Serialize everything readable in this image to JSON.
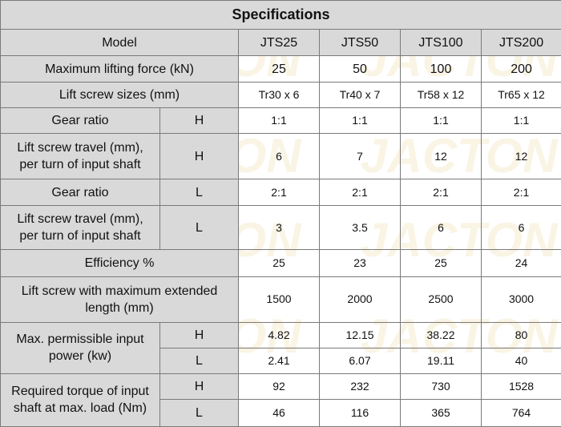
{
  "title": "Specifications",
  "watermark": "JACTON",
  "header": {
    "model_label": "Model",
    "models": [
      "JTS25",
      "JTS50",
      "JTS100",
      "JTS200"
    ]
  },
  "rows": {
    "max_lifting_force": {
      "label": "Maximum lifting force (kN)",
      "values": [
        "25",
        "50",
        "100",
        "200"
      ]
    },
    "lift_screw_sizes": {
      "label": "Lift screw sizes (mm)",
      "values": [
        "Tr30 x 6",
        "Tr40 x 7",
        "Tr58 x 12",
        "Tr65 x 12"
      ]
    },
    "gear_ratio_h": {
      "label": "Gear ratio",
      "sub": "H",
      "values": [
        "1:1",
        "1:1",
        "1:1",
        "1:1"
      ]
    },
    "travel_h": {
      "label_line1": "Lift screw travel (mm),",
      "label_line2": "per turn of input shaft",
      "sub": "H",
      "values": [
        "6",
        "7",
        "12",
        "12"
      ]
    },
    "gear_ratio_l": {
      "label": "Gear ratio",
      "sub": "L",
      "values": [
        "2:1",
        "2:1",
        "2:1",
        "2:1"
      ]
    },
    "travel_l": {
      "label_line1": "Lift screw travel (mm),",
      "label_line2": "per turn of input shaft",
      "sub": "L",
      "values": [
        "3",
        "3.5",
        "6",
        "6"
      ]
    },
    "efficiency": {
      "label": "Efficiency %",
      "values": [
        "25",
        "23",
        "25",
        "24"
      ]
    },
    "max_extended_length": {
      "label_line1": "Lift screw with maximum extended",
      "label_line2": "length (mm)",
      "values": [
        "1500",
        "2000",
        "2500",
        "3000"
      ]
    },
    "input_power": {
      "label_line1": "Max. permissible input",
      "label_line2": "power (kw)",
      "h": {
        "sub": "H",
        "values": [
          "4.82",
          "12.15",
          "38.22",
          "80"
        ]
      },
      "l": {
        "sub": "L",
        "values": [
          "2.41",
          "6.07",
          "19.11",
          "40"
        ]
      }
    },
    "required_torque": {
      "label_line1": "Required torque of input",
      "label_line2": "shaft at max. load (Nm)",
      "h": {
        "sub": "H",
        "values": [
          "92",
          "232",
          "730",
          "1528"
        ]
      },
      "l": {
        "sub": "L",
        "values": [
          "46",
          "116",
          "365",
          "764"
        ]
      }
    }
  },
  "colors": {
    "header_bg": "#d9d9d9",
    "border": "#7a7a7a",
    "watermark": "#f3e7c4"
  }
}
